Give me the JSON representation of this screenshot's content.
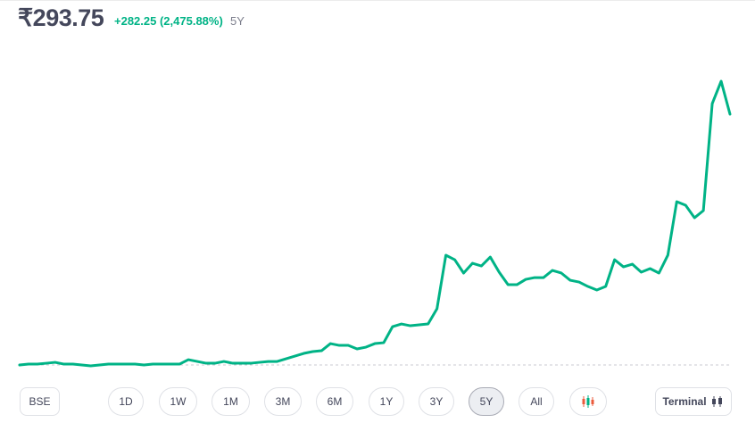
{
  "header": {
    "price": "₹293.75",
    "change": "+282.25 (2,475.88%)",
    "period": "5Y"
  },
  "chart_data": {
    "type": "line",
    "color": "#00b386",
    "values": [
      11.5,
      12.5,
      12.5,
      13.5,
      14.5,
      12.5,
      12.5,
      11.5,
      10.5,
      11.5,
      12.5,
      12.5,
      12.5,
      12.5,
      11.5,
      12.5,
      12.5,
      12.5,
      12.5,
      17.5,
      15.5,
      13.5,
      13.5,
      15.5,
      13.5,
      13.5,
      13.5,
      14.5,
      15.5,
      15.5,
      18.5,
      21.5,
      24.6,
      26.6,
      27.6,
      35.6,
      33.6,
      33.6,
      29.6,
      31.6,
      35.6,
      36.6,
      54.7,
      57.7,
      55.7,
      56.7,
      57.7,
      74.8,
      135.1,
      130.0,
      115.0,
      126.0,
      123.0,
      133.0,
      116.0,
      101.9,
      101.9,
      107.9,
      109.9,
      109.9,
      118.0,
      115.0,
      106.9,
      104.9,
      99.9,
      95.9,
      99.9,
      130.0,
      122.0,
      125.0,
      116.0,
      120.0,
      115.0,
      135.1,
      195.3,
      191.3,
      177.2,
      185.3,
      305.8,
      330.9,
      293.75
    ],
    "ylim": [
      0,
      350
    ]
  },
  "controls": {
    "exchange": "BSE",
    "ranges": [
      "1D",
      "1W",
      "1M",
      "3M",
      "6M",
      "1Y",
      "3Y",
      "5Y",
      "All"
    ],
    "terminal": "Terminal"
  }
}
